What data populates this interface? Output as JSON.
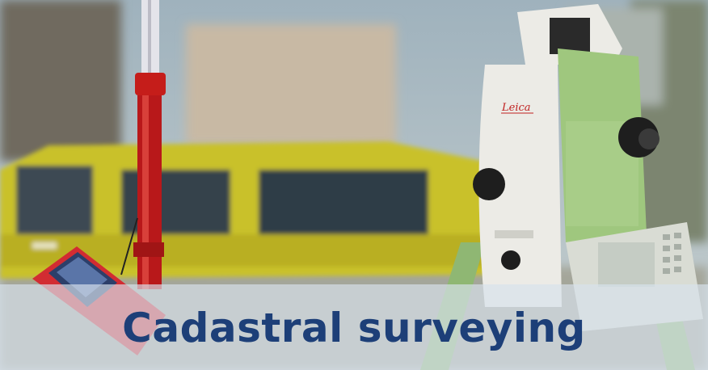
{
  "photo": {
    "subject": "total-station-on-tripod-with-survey-pole-and-controller",
    "brand_mark": "Leica",
    "colors": {
      "sky": "#b4c4cc",
      "vehicle": "#c9c12c",
      "instrument_body": "#ecebe6",
      "instrument_green": "#9fc77e",
      "pole_red": "#c51d1a"
    }
  },
  "caption": {
    "text": "Cadastral surveying",
    "band_color": "#d7e2ec",
    "text_color": "#1d3f78"
  }
}
